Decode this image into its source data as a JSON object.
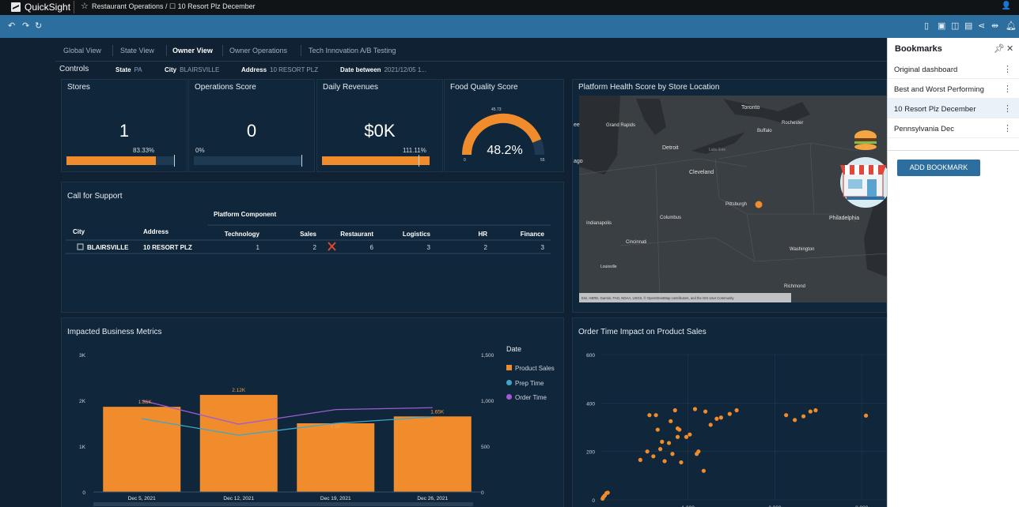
{
  "app": {
    "brand": "QuickSight",
    "breadcrumb": "Restaurant Operations / ☐ 10 Resort Plz December"
  },
  "tabs": [
    {
      "label": "Global View",
      "active": false
    },
    {
      "label": "State View",
      "active": false
    },
    {
      "label": "Owner View",
      "active": true
    },
    {
      "label": "Owner Operations",
      "active": false
    },
    {
      "label": "Tech Innovation A/B Testing",
      "active": false
    }
  ],
  "controls": {
    "title": "Controls",
    "state": {
      "label": "State",
      "value": "PA"
    },
    "city": {
      "label": "City",
      "value": "BLAIRSVILLE"
    },
    "address": {
      "label": "Address",
      "value": "10 RESORT PLZ"
    },
    "date": {
      "label": "Date between",
      "value": "2021/12/05 1..."
    }
  },
  "kpis": [
    {
      "title": "Stores",
      "value": "1",
      "pct_label": "83.33%",
      "fill": 0.8333
    },
    {
      "title": "Operations Score",
      "value": "0",
      "pct_label": "0%",
      "fill": 0
    },
    {
      "title": "Daily Revenues",
      "value": "$0K",
      "pct_label": "111.11%",
      "fill": 1.0
    }
  ],
  "gauge": {
    "title": "Food Quality Score",
    "value_label": "48.2%",
    "value": 48.2,
    "min_label": "0",
    "max_label": "55",
    "target_label": "45.73",
    "fill_fraction": 0.876
  },
  "support": {
    "title": "Call for Support",
    "group_header": "Platform Component",
    "columns": [
      "City",
      "Address",
      "Technology",
      "Sales",
      "Restaurant",
      "Logistics",
      "HR",
      "Finance"
    ],
    "row": {
      "city": "BLAIRSVILLE",
      "address": "10 RESORT PLZ",
      "values": [
        "1",
        "2",
        "6",
        "3",
        "2",
        "3"
      ]
    }
  },
  "map": {
    "title": "Platform Health Score by Store Location",
    "attribution": "Esri, HERE, Garmin, FAO, NOAA, USGS, © OpenStreetMap contributors, and the GIS User Community",
    "labels": [
      "Toronto",
      "Rochester",
      "Buffalo",
      "Grand Rapids",
      "Detroit",
      "Lake Erie",
      "Cleveland",
      "ago",
      "Pittsburgh",
      "Indianapolis",
      "Columbus",
      "Philadelphia",
      "Cincinnati",
      "Washington",
      "Louisville",
      "Richmond",
      "ee"
    ]
  },
  "bar_chart": {
    "title": "Impacted Business Metrics",
    "legend_title": "Date",
    "legend": [
      {
        "name": "Product Sales",
        "color": "#f08c2c"
      },
      {
        "name": "Prep Time",
        "color": "#3fa6c8"
      },
      {
        "name": "Order Time",
        "color": "#a05bd6"
      }
    ]
  },
  "scatter_chart": {
    "title": "Order Time Impact on Product Sales"
  },
  "chart_data": [
    {
      "type": "bar",
      "title": "Impacted Business Metrics",
      "categories": [
        "Dec 5, 2021",
        "Dec 12, 2021",
        "Dec 19, 2021",
        "Dec 26, 2021"
      ],
      "series": [
        {
          "name": "Product Sales",
          "values": [
            1860,
            2120,
            1500,
            1650
          ],
          "axis": "left",
          "data_labels": [
            "1.86K",
            "2.12K",
            "1.5K",
            "1.65K"
          ]
        },
        {
          "name": "Prep Time",
          "values": [
            800,
            620,
            750,
            820
          ],
          "axis": "right"
        },
        {
          "name": "Order Time",
          "values": [
            1000,
            740,
            900,
            920
          ],
          "axis": "right"
        }
      ],
      "ylim": [
        0,
        3000
      ],
      "y_ticks": [
        "0",
        "1K",
        "2K",
        "3K"
      ],
      "y2lim": [
        0,
        1500
      ],
      "y2_ticks": [
        "0",
        "500",
        "1,000",
        "1,500"
      ],
      "legend": "right"
    },
    {
      "type": "scatter",
      "title": "Order Time Impact on Product Sales",
      "ylim": [
        0,
        600
      ],
      "y_ticks": [
        "0",
        "200",
        "400",
        "600"
      ],
      "x_ticks": [
        "1,000",
        "2,000",
        "3,000"
      ],
      "points": [
        [
          15,
          5
        ],
        [
          25,
          12
        ],
        [
          40,
          18
        ],
        [
          60,
          28
        ],
        [
          75,
          30
        ],
        [
          450,
          165
        ],
        [
          530,
          200
        ],
        [
          555,
          350
        ],
        [
          600,
          180
        ],
        [
          630,
          350
        ],
        [
          650,
          290
        ],
        [
          680,
          210
        ],
        [
          700,
          240
        ],
        [
          730,
          160
        ],
        [
          780,
          235
        ],
        [
          800,
          325
        ],
        [
          820,
          190
        ],
        [
          850,
          370
        ],
        [
          880,
          295
        ],
        [
          880,
          260
        ],
        [
          900,
          290
        ],
        [
          920,
          155
        ],
        [
          980,
          260
        ],
        [
          1020,
          270
        ],
        [
          1080,
          375
        ],
        [
          1100,
          190
        ],
        [
          1120,
          200
        ],
        [
          1180,
          120
        ],
        [
          1200,
          365
        ],
        [
          1260,
          310
        ],
        [
          1330,
          335
        ],
        [
          1380,
          340
        ],
        [
          1480,
          355
        ],
        [
          1560,
          370
        ],
        [
          2130,
          350
        ],
        [
          2230,
          330
        ],
        [
          2330,
          345
        ],
        [
          2410,
          365
        ],
        [
          2470,
          370
        ],
        [
          3050,
          348
        ]
      ],
      "grid": true
    }
  ],
  "bookmarks": {
    "title": "Bookmarks",
    "items": [
      "Original dashboard",
      "Best and Worst Performing",
      "10 Resort Plz December",
      "Pennsylvania Dec"
    ],
    "selected": 2,
    "add_label": "ADD BOOKMARK"
  }
}
